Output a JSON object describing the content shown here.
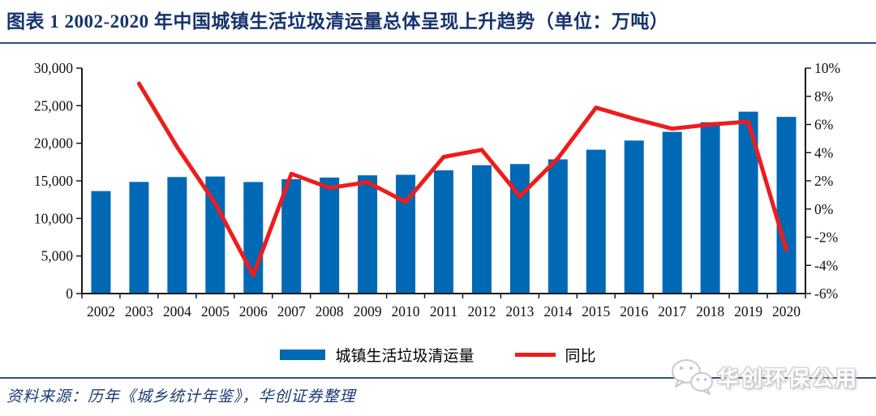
{
  "header": {
    "title": "图表 1  2002-2020 年中国城镇生活垃圾清运量总体呈现上升趋势（单位：万吨）"
  },
  "chart_data": {
    "type": "bar",
    "subtype": "bar+line dual-axis combo",
    "title": "2002-2020 年中国城镇生活垃圾清运量",
    "categories": [
      "2002",
      "2003",
      "2004",
      "2005",
      "2006",
      "2007",
      "2008",
      "2009",
      "2010",
      "2011",
      "2012",
      "2013",
      "2014",
      "2015",
      "2016",
      "2017",
      "2018",
      "2019",
      "2020"
    ],
    "series": [
      {
        "name": "城镇生活垃圾清运量",
        "type": "bar",
        "axis": "left",
        "unit": "万吨",
        "values": [
          13638,
          14857,
          15509,
          15577,
          14841,
          15215,
          15438,
          15734,
          15805,
          16395,
          17081,
          17239,
          17860,
          19142,
          20362,
          21521,
          22802,
          24206,
          23512
        ]
      },
      {
        "name": "同比",
        "type": "line",
        "axis": "right",
        "unit": "%",
        "values": [
          null,
          8.9,
          4.4,
          0.4,
          -4.7,
          2.5,
          1.5,
          1.9,
          0.5,
          3.7,
          4.2,
          0.9,
          3.6,
          7.2,
          6.4,
          5.7,
          6.0,
          6.2,
          -2.9
        ]
      }
    ],
    "left_axis": {
      "min": 0,
      "max": 30000,
      "step": 5000,
      "tick_labels": [
        "0",
        "5,000",
        "10,000",
        "15,000",
        "20,000",
        "25,000",
        "30,000"
      ]
    },
    "right_axis": {
      "min": -6,
      "max": 10,
      "step": 2,
      "tick_labels": [
        "-6%",
        "-4%",
        "-2%",
        "0%",
        "2%",
        "4%",
        "6%",
        "8%",
        "10%"
      ]
    },
    "grid": false,
    "legend_position": "bottom-center",
    "colors": {
      "bar": "#0069b6",
      "line": "#ee1c1c",
      "axis": "#1a1a1a"
    }
  },
  "legend": {
    "bar_label": "城镇生活垃圾清运量",
    "line_label": "同比"
  },
  "footer": {
    "source": "资料来源：历年《城乡统计年鉴》，华创证券整理"
  },
  "watermark": {
    "text": "华创环保公用",
    "icon": "wechat-icon"
  }
}
